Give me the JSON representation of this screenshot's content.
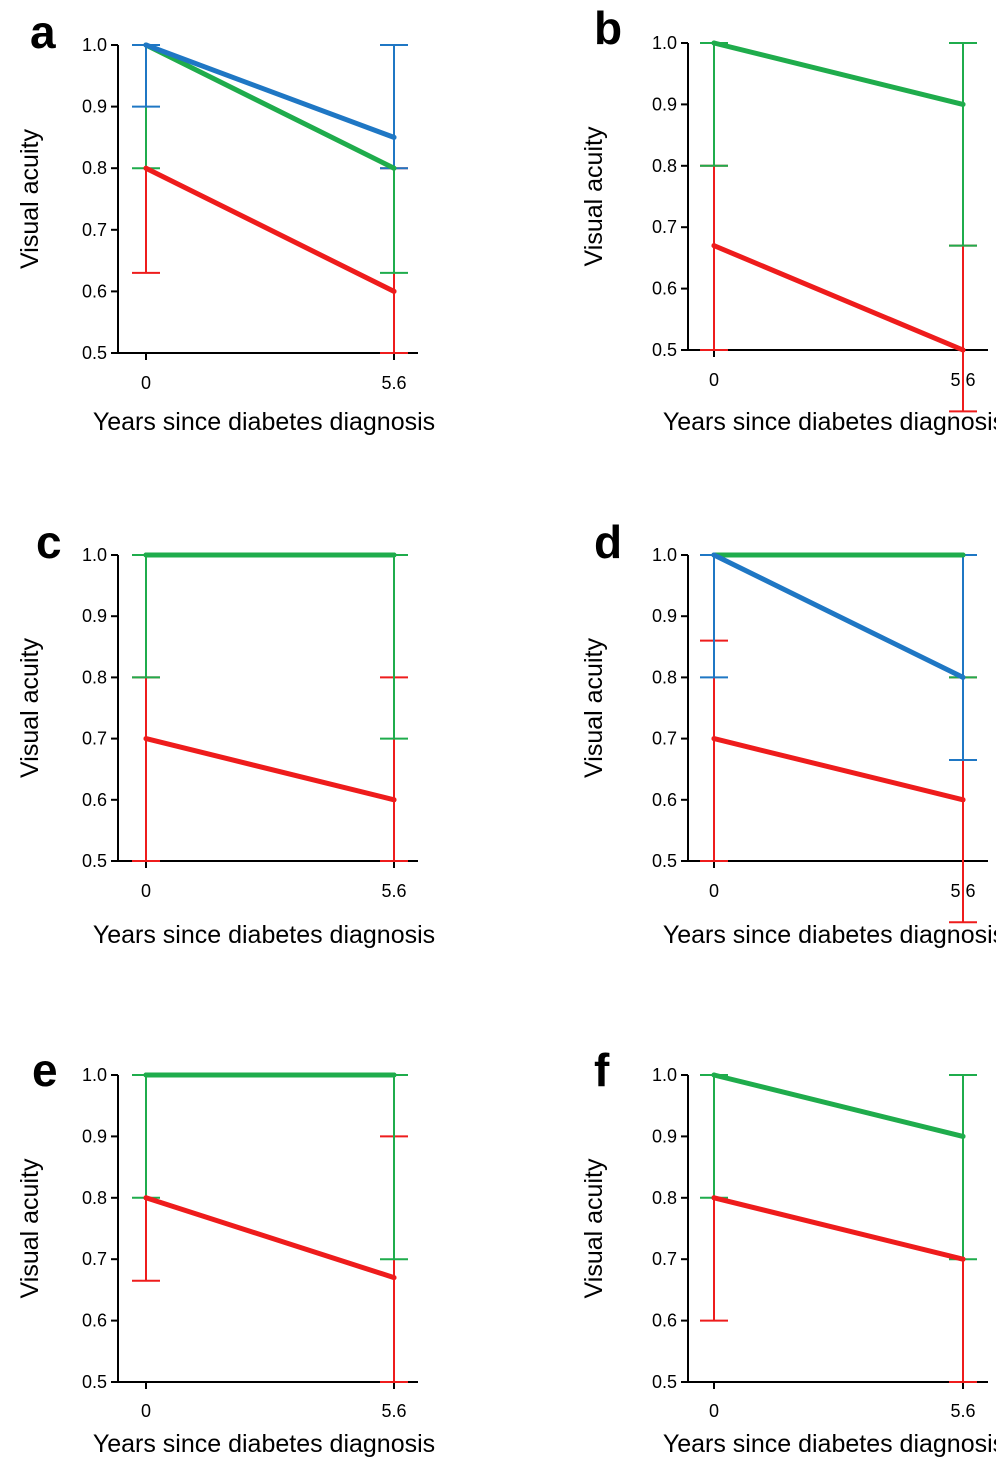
{
  "figure": {
    "colors": {
      "red": "#ee1c1c",
      "green": "#1fac4c",
      "blue": "#1f77c4",
      "axis": "#000000"
    }
  },
  "chart_data": [
    {
      "panel": "a",
      "type": "line",
      "xlabel": "Years since diabetes diagnosis",
      "ylabel": "Visual acuity",
      "x": [
        0,
        5.6
      ],
      "x_tick_labels": [
        "0",
        "5.6"
      ],
      "y_ticks": [
        "0.5",
        "0.6",
        "0.7",
        "0.8",
        "0.9",
        "1.0"
      ],
      "ylim": [
        0.5,
        1.0
      ],
      "grid": false,
      "legend": "none",
      "series": [
        {
          "color": "#ee1c1c",
          "values": [
            0.8,
            0.6
          ],
          "lower": [
            0.63,
            0.5
          ],
          "upper": [
            1.0,
            0.8
          ]
        },
        {
          "color": "#1fac4c",
          "values": [
            1.0,
            0.8
          ],
          "lower": [
            0.8,
            0.63
          ],
          "upper": [
            1.0,
            1.0
          ]
        },
        {
          "color": "#1f77c4",
          "values": [
            1.0,
            0.85
          ],
          "lower": [
            0.9,
            0.8
          ],
          "upper": [
            1.0,
            1.0
          ]
        }
      ]
    },
    {
      "panel": "b",
      "type": "line",
      "xlabel": "Years since diabetes diagnosis",
      "ylabel": "Visual acuity",
      "x": [
        0,
        5.6
      ],
      "x_tick_labels": [
        "0",
        "5.6"
      ],
      "y_ticks": [
        "0.5",
        "0.6",
        "0.7",
        "0.8",
        "0.9",
        "1.0"
      ],
      "ylim": [
        0.5,
        1.0
      ],
      "grid": false,
      "legend": "none",
      "series": [
        {
          "color": "#ee1c1c",
          "values": [
            0.67,
            0.5
          ],
          "lower": [
            0.5,
            0.4
          ],
          "upper": [
            0.8,
            0.67
          ]
        },
        {
          "color": "#1fac4c",
          "values": [
            1.0,
            0.9
          ],
          "lower": [
            0.8,
            0.67
          ],
          "upper": [
            1.0,
            1.0
          ]
        }
      ]
    },
    {
      "panel": "c",
      "type": "line",
      "xlabel": "Years since diabetes diagnosis",
      "ylabel": "Visual acuity",
      "x": [
        0,
        5.6
      ],
      "x_tick_labels": [
        "0",
        "5.6"
      ],
      "y_ticks": [
        "0.5",
        "0.6",
        "0.7",
        "0.8",
        "0.9",
        "1.0"
      ],
      "ylim": [
        0.5,
        1.0
      ],
      "grid": false,
      "legend": "none",
      "series": [
        {
          "color": "#ee1c1c",
          "values": [
            0.7,
            0.6
          ],
          "lower": [
            0.5,
            0.5
          ],
          "upper": [
            0.8,
            0.8
          ]
        },
        {
          "color": "#1fac4c",
          "values": [
            1.0,
            1.0
          ],
          "lower": [
            0.8,
            0.7
          ],
          "upper": [
            1.0,
            1.0
          ]
        }
      ]
    },
    {
      "panel": "d",
      "type": "line",
      "xlabel": "Years since diabetes diagnosis",
      "ylabel": "Visual acuity",
      "x": [
        0,
        5.6
      ],
      "x_tick_labels": [
        "0",
        "5.6"
      ],
      "y_ticks": [
        "0.5",
        "0.6",
        "0.7",
        "0.8",
        "0.9",
        "1.0"
      ],
      "ylim": [
        0.5,
        1.0
      ],
      "grid": false,
      "legend": "none",
      "series": [
        {
          "color": "#ee1c1c",
          "values": [
            0.7,
            0.6
          ],
          "lower": [
            0.5,
            0.4
          ],
          "upper": [
            0.86,
            0.8
          ]
        },
        {
          "color": "#1fac4c",
          "values": [
            1.0,
            1.0
          ],
          "lower": [
            1.0,
            0.8
          ],
          "upper": [
            1.0,
            1.0
          ]
        },
        {
          "color": "#1f77c4",
          "values": [
            1.0,
            0.8
          ],
          "lower": [
            0.8,
            0.665
          ],
          "upper": [
            1.0,
            1.0
          ]
        }
      ]
    },
    {
      "panel": "e",
      "type": "line",
      "xlabel": "Years since diabetes diagnosis",
      "ylabel": "Visual acuity",
      "x": [
        0,
        5.6
      ],
      "x_tick_labels": [
        "0",
        "5.6"
      ],
      "y_ticks": [
        "0.5",
        "0.6",
        "0.7",
        "0.8",
        "0.9",
        "1.0"
      ],
      "ylim": [
        0.5,
        1.0
      ],
      "grid": false,
      "legend": "none",
      "series": [
        {
          "color": "#ee1c1c",
          "values": [
            0.8,
            0.67
          ],
          "lower": [
            0.665,
            0.5
          ],
          "upper": [
            1.0,
            0.9
          ]
        },
        {
          "color": "#1fac4c",
          "values": [
            1.0,
            1.0
          ],
          "lower": [
            0.8,
            0.7
          ],
          "upper": [
            1.0,
            1.0
          ]
        }
      ]
    },
    {
      "panel": "f",
      "type": "line",
      "xlabel": "Years since diabetes diagnosis",
      "ylabel": "Visual acuity",
      "x": [
        0,
        5.6
      ],
      "x_tick_labels": [
        "0",
        "5.6"
      ],
      "y_ticks": [
        "0.5",
        "0.6",
        "0.7",
        "0.8",
        "0.9",
        "1.0"
      ],
      "ylim": [
        0.5,
        1.0
      ],
      "grid": false,
      "legend": "none",
      "series": [
        {
          "color": "#ee1c1c",
          "values": [
            0.8,
            0.7
          ],
          "lower": [
            0.6,
            0.5
          ],
          "upper": [
            1.0,
            1.0
          ]
        },
        {
          "color": "#1fac4c",
          "values": [
            1.0,
            0.9
          ],
          "lower": [
            0.8,
            0.7
          ],
          "upper": [
            1.0,
            1.0
          ]
        }
      ]
    }
  ]
}
